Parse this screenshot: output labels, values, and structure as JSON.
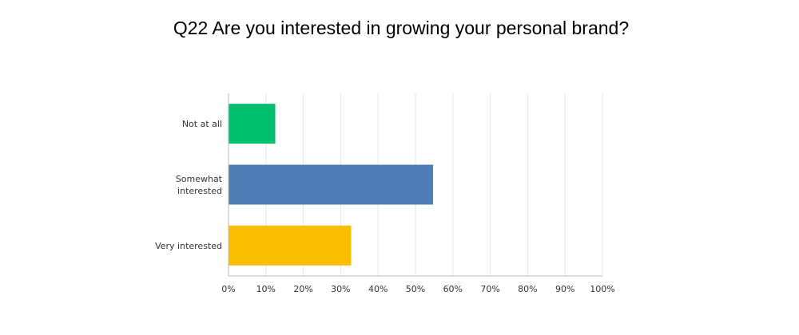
{
  "chart_data": {
    "type": "bar",
    "orientation": "horizontal",
    "title": "Q22 Are you interested in growing your personal brand?",
    "categories": [
      [
        "Not at all"
      ],
      [
        "Somewhat",
        "interested"
      ],
      [
        "Very interested"
      ]
    ],
    "values": [
      12.5,
      54.7,
      32.8
    ],
    "colors": [
      "#00BF6F",
      "#507CB6",
      "#F9BE00"
    ],
    "xlim": [
      0,
      100
    ],
    "xticks": [
      "0%",
      "10%",
      "20%",
      "30%",
      "40%",
      "50%",
      "60%",
      "70%",
      "80%",
      "90%",
      "100%"
    ],
    "grid": true,
    "legend": "none"
  }
}
